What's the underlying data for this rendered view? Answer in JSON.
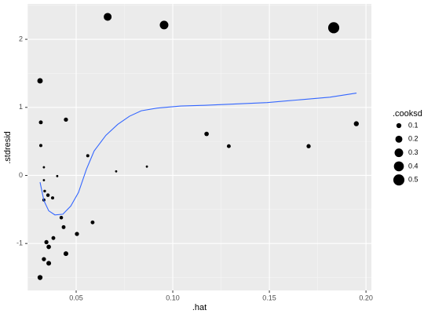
{
  "chart_data": {
    "type": "scatter",
    "x_label": ".hat",
    "y_label": ".stdresid",
    "xlim": [
      0.0248,
      0.2028
    ],
    "ylim": [
      -1.69,
      2.52
    ],
    "xticks": [
      0.05,
      {
        "value": 0.1,
        "label": "0.10"
      },
      0.15,
      {
        "value": 0.2,
        "label": "0.20"
      }
    ],
    "yticks": [
      -1,
      0,
      1,
      2
    ],
    "grid": true,
    "point_color": "#000000",
    "x": [
      0.0663,
      0.0955,
      0.1833,
      0.0313,
      0.0317,
      0.0447,
      0.0317,
      0.1175,
      0.129,
      0.1703,
      0.195,
      0.056,
      0.0707,
      0.0866,
      0.0333,
      0.0402,
      0.0333,
      0.0337,
      0.0354,
      0.0378,
      0.0333,
      0.0423,
      0.0435,
      0.0585,
      0.0504,
      0.0382,
      0.0346,
      0.0358,
      0.0447,
      0.0333,
      0.0358,
      0.0313
    ],
    "y": [
      2.33,
      2.21,
      2.17,
      1.39,
      0.78,
      0.82,
      0.44,
      0.61,
      0.43,
      0.43,
      0.76,
      0.29,
      0.06,
      0.13,
      0.12,
      -0.01,
      -0.07,
      -0.23,
      -0.29,
      -0.33,
      -0.36,
      -0.62,
      -0.76,
      -0.69,
      -0.86,
      -0.92,
      -0.98,
      -1.05,
      -1.15,
      -1.23,
      -1.29,
      -1.5
    ],
    "size": [
      0.25,
      0.3,
      0.5,
      0.12,
      0.06,
      0.07,
      0.04,
      0.08,
      0.06,
      0.07,
      0.1,
      0.04,
      0.02,
      0.02,
      0.02,
      0.02,
      0.02,
      0.03,
      0.05,
      0.04,
      0.04,
      0.05,
      0.06,
      0.06,
      0.07,
      0.06,
      0.07,
      0.08,
      0.09,
      0.07,
      0.09,
      0.1
    ],
    "smooth": {
      "color": "#3366ff",
      "x": [
        0.0313,
        0.0333,
        0.0358,
        0.039,
        0.0431,
        0.0472,
        0.0512,
        0.0553,
        0.0593,
        0.0654,
        0.0715,
        0.0776,
        0.0837,
        0.0919,
        0.1041,
        0.1163,
        0.1325,
        0.1488,
        0.165,
        0.1813,
        0.1951
      ],
      "y": [
        -0.1,
        -0.37,
        -0.52,
        -0.58,
        -0.57,
        -0.45,
        -0.25,
        0.09,
        0.36,
        0.59,
        0.75,
        0.87,
        0.95,
        0.99,
        1.02,
        1.03,
        1.05,
        1.07,
        1.11,
        1.15,
        1.21
      ]
    },
    "size_legend": {
      "title": ".cooksd",
      "values": [
        0.1,
        0.2,
        0.3,
        0.4,
        0.5
      ]
    }
  }
}
